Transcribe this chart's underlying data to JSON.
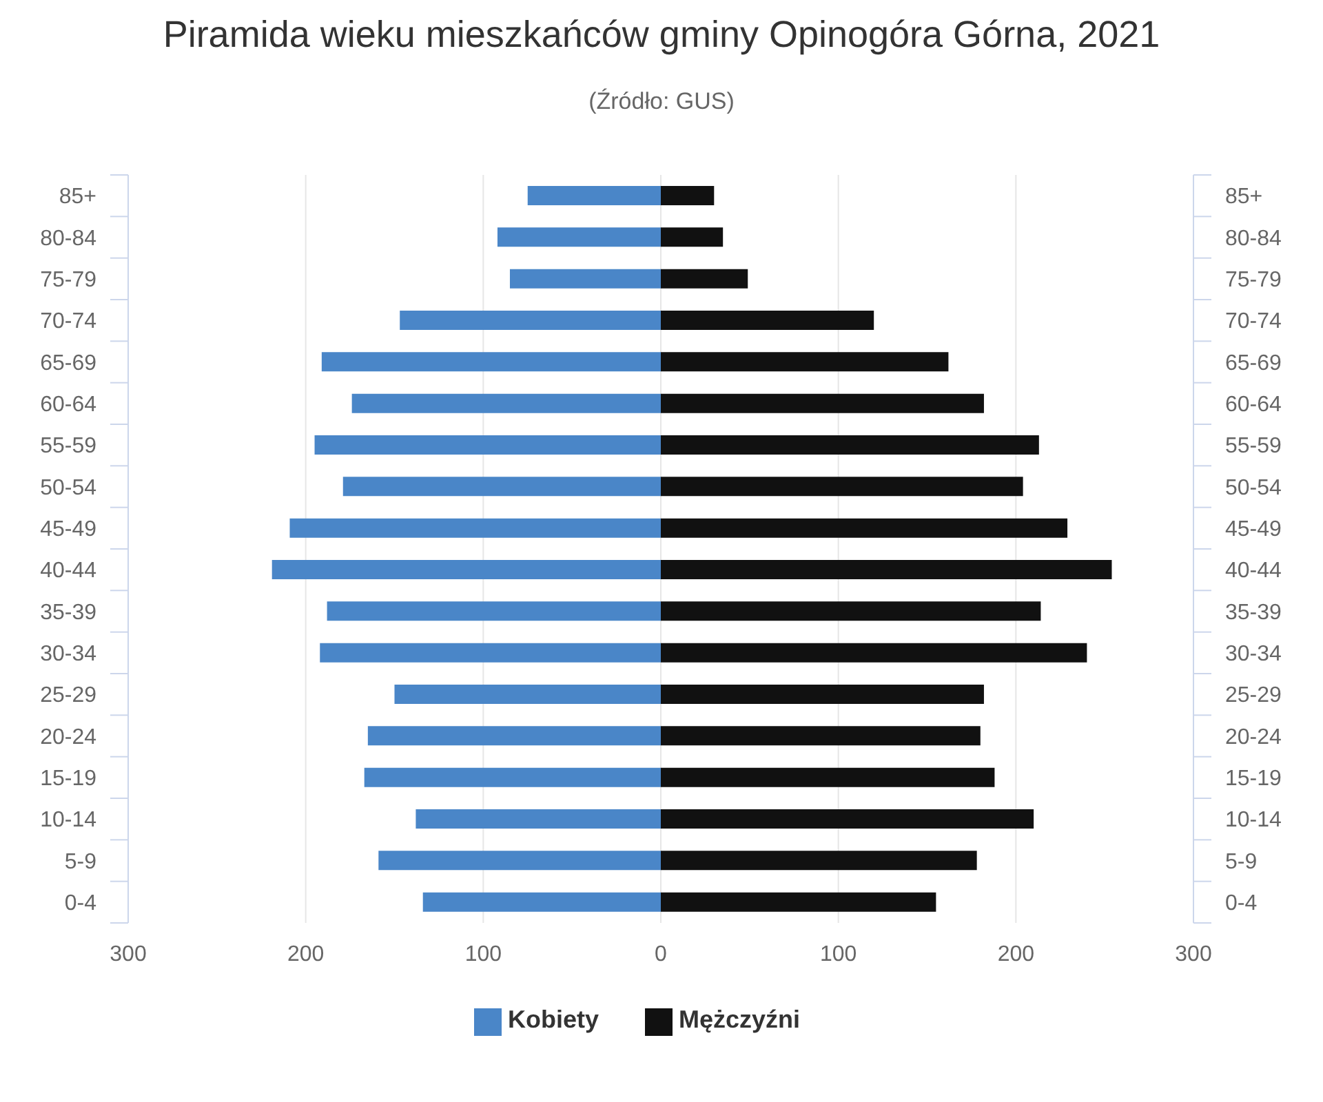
{
  "chart_data": {
    "type": "bar",
    "orientation": "horizontal",
    "stacked": true,
    "title": "Piramida wieku mieszkańców gminy Opinogóra Górna, 2021",
    "subtitle": "(Źródło: GUS)",
    "categories": [
      "85+",
      "80-84",
      "75-79",
      "70-74",
      "65-69",
      "60-64",
      "55-59",
      "50-54",
      "45-49",
      "40-44",
      "35-39",
      "30-34",
      "25-29",
      "20-24",
      "15-19",
      "10-14",
      "5-9",
      "0-4"
    ],
    "series": [
      {
        "name": "Kobiety",
        "color": "#4a86c8",
        "values": [
          -75,
          -92,
          -85,
          -147,
          -191,
          -174,
          -195,
          -179,
          -209,
          -219,
          -188,
          -192,
          -150,
          -165,
          -167,
          -138,
          -159,
          -134
        ]
      },
      {
        "name": "Mężczyźni",
        "color": "#111111",
        "values": [
          30,
          35,
          49,
          120,
          162,
          182,
          213,
          204,
          229,
          254,
          214,
          240,
          182,
          180,
          188,
          210,
          178,
          155
        ]
      }
    ],
    "xlim": [
      -300,
      300
    ],
    "xticks": [
      {
        "value": -300,
        "label": "300"
      },
      {
        "value": -200,
        "label": "200"
      },
      {
        "value": -100,
        "label": "100"
      },
      0,
      100,
      200,
      300
    ],
    "grid": "x",
    "legend": "bottom"
  }
}
